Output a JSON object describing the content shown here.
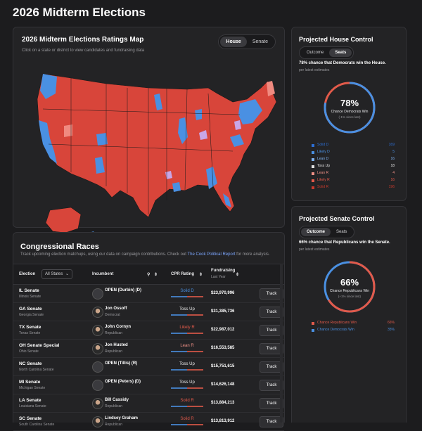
{
  "page_title": "2026 Midterm Elections",
  "map": {
    "title": "2026 Midterm Elections Ratings Map",
    "subtitle": "Click on a state or district to view candidates and fundraising data",
    "toggle": [
      "House",
      "Senate"
    ],
    "active_toggle": "House"
  },
  "races": {
    "title": "Congressional Races",
    "description_prefix": "Track upcoming election matchups, using our data on campaign contributions. Check out ",
    "description_link": "The Cook Political Report",
    "description_suffix": " for more analysis.",
    "headers": {
      "election": "Election",
      "state_filter": "All States",
      "incumbent": "Incumbent",
      "rating": "CPR Rating",
      "fundraising": "Fundraising",
      "fundraising_sub": "Last Year"
    },
    "track_label": "Track",
    "rows": [
      {
        "race": "IL Senate",
        "state": "Illinois Senate",
        "name": "OPEN (Durbin) (D)",
        "party": "",
        "rating": "Solid D",
        "funds": "$23,970,996",
        "rating_color": "#4a90e2",
        "open": true
      },
      {
        "race": "GA Senate",
        "state": "Georgia Senate",
        "name": "Jon Ossoff",
        "party": "Democrat",
        "rating": "Toss Up",
        "funds": "$31,385,736",
        "rating_color": "#f0f0f0",
        "open": false
      },
      {
        "race": "TX Senate",
        "state": "Texas Senate",
        "name": "John Cornyn",
        "party": "Republican",
        "rating": "Likely R",
        "funds": "$22,987,012",
        "rating_color": "#e25a4a",
        "open": false
      },
      {
        "race": "OH Senate Special",
        "state": "Ohio Senate",
        "name": "Jon Husted",
        "party": "Republican",
        "rating": "Lean R",
        "funds": "$16,553,585",
        "rating_color": "#ee9086",
        "open": false
      },
      {
        "race": "NC Senate",
        "state": "North Carolina Senate",
        "name": "OPEN (Tillis) (R)",
        "party": "",
        "rating": "Toss Up",
        "funds": "$15,751,615",
        "rating_color": "#f0f0f0",
        "open": true
      },
      {
        "race": "MI Senate",
        "state": "Michigan Senate",
        "name": "OPEN (Peters) (D)",
        "party": "",
        "rating": "Toss Up",
        "funds": "$14,626,148",
        "rating_color": "#f0f0f0",
        "open": true
      },
      {
        "race": "LA Senate",
        "state": "Louisiana Senate",
        "name": "Bill Cassidy",
        "party": "Republican",
        "rating": "Solid R",
        "funds": "$13,884,213",
        "rating_color": "#e25a4a",
        "open": false
      },
      {
        "race": "SC Senate",
        "state": "South Carolina Senate",
        "name": "Lindsey Graham",
        "party": "Republican",
        "rating": "Solid R",
        "funds": "$13,813,912",
        "rating_color": "#e25a4a",
        "open": false
      }
    ]
  },
  "house": {
    "title": "Projected House Control",
    "toggle": [
      "Outcome",
      "Seats"
    ],
    "active_toggle": "Seats",
    "headline": "78% chance that Democrats win the House.",
    "headline_sub": "per latest estimates",
    "pct": "78%",
    "pct_value": 78,
    "label": "Chance Democrats Win",
    "change": "(-1% since last)",
    "legend": [
      {
        "label": "Solid D",
        "value": "169",
        "color": "#2d6fd6"
      },
      {
        "label": "Likely D",
        "value": "5",
        "color": "#4a90e2"
      },
      {
        "label": "Lean D",
        "value": "16",
        "color": "#7fb2f0"
      },
      {
        "label": "Toss Up",
        "value": "18",
        "color": "#e0e0e0"
      },
      {
        "label": "Lean R",
        "value": "4",
        "color": "#ee9086"
      },
      {
        "label": "Likely R",
        "value": "16",
        "color": "#e25a4a"
      },
      {
        "label": "Solid R",
        "value": "196",
        "color": "#c83a2c"
      }
    ]
  },
  "senate": {
    "title": "Projected Senate Control",
    "toggle": [
      "Outcome",
      "Seats"
    ],
    "active_toggle": "Outcome",
    "headline": "66% chance that Republicans win the Senate.",
    "headline_sub": "per latest estimates",
    "pct": "66%",
    "pct_value": 66,
    "label": "Chance Republicans Win",
    "change": "(+1% since last)",
    "legend": [
      {
        "label": "Chance Republicans Win",
        "value": "66%",
        "color": "#e25a4a"
      },
      {
        "label": "Chance Democrats Win",
        "value": "35%",
        "color": "#4a90e2"
      }
    ]
  },
  "colors": {
    "dem": "#4a90e2",
    "rep": "#e25a4a",
    "rep_dark": "#c83a2c",
    "tossup": "#c9a6e6"
  }
}
